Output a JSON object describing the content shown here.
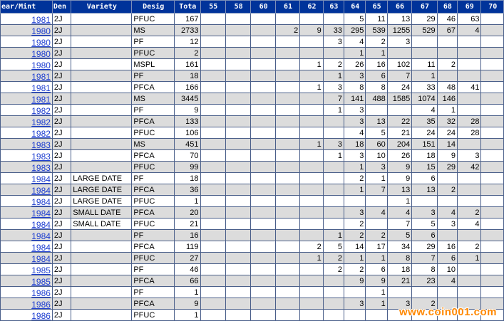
{
  "headers": [
    "ear/Mint",
    "Den",
    "Variety",
    "Desig",
    "Tota",
    "55",
    "58",
    "60",
    "61",
    "62",
    "63",
    "64",
    "65",
    "66",
    "67",
    "68",
    "69",
    "70"
  ],
  "rows": [
    {
      "year": "1981",
      "den": "2J",
      "variety": "",
      "desig": "PFUC",
      "total": "167",
      "grades": [
        "",
        "",
        "",
        "",
        "",
        "",
        "5",
        "11",
        "13",
        "29",
        "46",
        "63",
        ""
      ]
    },
    {
      "year": "1980",
      "den": "2J",
      "variety": "",
      "desig": "MS",
      "total": "2733",
      "grades": [
        "",
        "",
        "",
        "2",
        "9",
        "33",
        "295",
        "539",
        "1255",
        "529",
        "67",
        "4",
        ""
      ]
    },
    {
      "year": "1980",
      "den": "2J",
      "variety": "",
      "desig": "PF",
      "total": "12",
      "grades": [
        "",
        "",
        "",
        "",
        "",
        "3",
        "4",
        "2",
        "3",
        "",
        "",
        "",
        ""
      ]
    },
    {
      "year": "1980",
      "den": "2J",
      "variety": "",
      "desig": "PFUC",
      "total": "2",
      "grades": [
        "",
        "",
        "",
        "",
        "",
        "",
        "1",
        "1",
        "",
        "",
        "",
        "",
        ""
      ]
    },
    {
      "year": "1980",
      "den": "2J",
      "variety": "",
      "desig": "MSPL",
      "total": "161",
      "grades": [
        "",
        "",
        "",
        "",
        "1",
        "2",
        "26",
        "16",
        "102",
        "11",
        "2",
        "",
        ""
      ]
    },
    {
      "year": "1981",
      "den": "2J",
      "variety": "",
      "desig": "PF",
      "total": "18",
      "grades": [
        "",
        "",
        "",
        "",
        "",
        "1",
        "3",
        "6",
        "7",
        "1",
        "",
        "",
        ""
      ]
    },
    {
      "year": "1981",
      "den": "2J",
      "variety": "",
      "desig": "PFCA",
      "total": "166",
      "grades": [
        "",
        "",
        "",
        "",
        "1",
        "3",
        "8",
        "8",
        "24",
        "33",
        "48",
        "41",
        ""
      ]
    },
    {
      "year": "1981",
      "den": "2J",
      "variety": "",
      "desig": "MS",
      "total": "3445",
      "grades": [
        "",
        "",
        "",
        "",
        "",
        "7",
        "141",
        "488",
        "1585",
        "1074",
        "146",
        "",
        ""
      ]
    },
    {
      "year": "1982",
      "den": "2J",
      "variety": "",
      "desig": "PF",
      "total": "9",
      "grades": [
        "",
        "",
        "",
        "",
        "",
        "1",
        "3",
        "",
        "",
        "4",
        "1",
        "",
        ""
      ]
    },
    {
      "year": "1982",
      "den": "2J",
      "variety": "",
      "desig": "PFCA",
      "total": "133",
      "grades": [
        "",
        "",
        "",
        "",
        "",
        "",
        "3",
        "13",
        "22",
        "35",
        "32",
        "28",
        ""
      ]
    },
    {
      "year": "1982",
      "den": "2J",
      "variety": "",
      "desig": "PFUC",
      "total": "106",
      "grades": [
        "",
        "",
        "",
        "",
        "",
        "",
        "4",
        "5",
        "21",
        "24",
        "24",
        "28",
        ""
      ]
    },
    {
      "year": "1983",
      "den": "2J",
      "variety": "",
      "desig": "MS",
      "total": "451",
      "grades": [
        "",
        "",
        "",
        "",
        "1",
        "3",
        "18",
        "60",
        "204",
        "151",
        "14",
        "",
        ""
      ]
    },
    {
      "year": "1983",
      "den": "2J",
      "variety": "",
      "desig": "PFCA",
      "total": "70",
      "grades": [
        "",
        "",
        "",
        "",
        "",
        "1",
        "3",
        "10",
        "26",
        "18",
        "9",
        "3",
        ""
      ]
    },
    {
      "year": "1983",
      "den": "2J",
      "variety": "",
      "desig": "PFUC",
      "total": "99",
      "grades": [
        "",
        "",
        "",
        "",
        "",
        "",
        "1",
        "3",
        "9",
        "15",
        "29",
        "42",
        ""
      ]
    },
    {
      "year": "1984",
      "den": "2J",
      "variety": "LARGE DATE",
      "desig": "PF",
      "total": "18",
      "grades": [
        "",
        "",
        "",
        "",
        "",
        "",
        "2",
        "1",
        "9",
        "6",
        "",
        "",
        ""
      ]
    },
    {
      "year": "1984",
      "den": "2J",
      "variety": "LARGE DATE",
      "desig": "PFCA",
      "total": "36",
      "grades": [
        "",
        "",
        "",
        "",
        "",
        "",
        "1",
        "7",
        "13",
        "13",
        "2",
        "",
        ""
      ]
    },
    {
      "year": "1984",
      "den": "2J",
      "variety": "LARGE DATE",
      "desig": "PFUC",
      "total": "1",
      "grades": [
        "",
        "",
        "",
        "",
        "",
        "",
        "",
        "",
        "1",
        "",
        "",
        "",
        ""
      ]
    },
    {
      "year": "1984",
      "den": "2J",
      "variety": "SMALL DATE",
      "desig": "PFCA",
      "total": "20",
      "grades": [
        "",
        "",
        "",
        "",
        "",
        "",
        "3",
        "4",
        "4",
        "3",
        "4",
        "2",
        ""
      ]
    },
    {
      "year": "1984",
      "den": "2J",
      "variety": "SMALL DATE",
      "desig": "PFUC",
      "total": "21",
      "grades": [
        "",
        "",
        "",
        "",
        "",
        "",
        "2",
        "",
        "7",
        "5",
        "3",
        "4",
        ""
      ]
    },
    {
      "year": "1984",
      "den": "2J",
      "variety": "",
      "desig": "PF",
      "total": "16",
      "grades": [
        "",
        "",
        "",
        "",
        "",
        "1",
        "2",
        "2",
        "5",
        "6",
        "",
        "",
        ""
      ]
    },
    {
      "year": "1984",
      "den": "2J",
      "variety": "",
      "desig": "PFCA",
      "total": "119",
      "grades": [
        "",
        "",
        "",
        "",
        "2",
        "5",
        "14",
        "17",
        "34",
        "29",
        "16",
        "2",
        ""
      ]
    },
    {
      "year": "1984",
      "den": "2J",
      "variety": "",
      "desig": "PFUC",
      "total": "27",
      "grades": [
        "",
        "",
        "",
        "",
        "1",
        "2",
        "1",
        "1",
        "8",
        "7",
        "6",
        "1",
        ""
      ]
    },
    {
      "year": "1985",
      "den": "2J",
      "variety": "",
      "desig": "PF",
      "total": "46",
      "grades": [
        "",
        "",
        "",
        "",
        "",
        "2",
        "2",
        "6",
        "18",
        "8",
        "10",
        "",
        ""
      ]
    },
    {
      "year": "1985",
      "den": "2J",
      "variety": "",
      "desig": "PFCA",
      "total": "66",
      "grades": [
        "",
        "",
        "",
        "",
        "",
        "",
        "9",
        "9",
        "21",
        "23",
        "4",
        "",
        ""
      ]
    },
    {
      "year": "1986",
      "den": "2J",
      "variety": "",
      "desig": "PF",
      "total": "1",
      "grades": [
        "",
        "",
        "",
        "",
        "",
        "",
        "",
        "1",
        "",
        "",
        "",
        "",
        ""
      ]
    },
    {
      "year": "1986",
      "den": "2J",
      "variety": "",
      "desig": "PFCA",
      "total": "9",
      "grades": [
        "",
        "",
        "",
        "",
        "",
        "",
        "3",
        "1",
        "3",
        "2",
        "",
        "",
        ""
      ]
    },
    {
      "year": "1986",
      "den": "2J",
      "variety": "",
      "desig": "PFUC",
      "total": "1",
      "grades": [
        "",
        "",
        "",
        "",
        "",
        "",
        "",
        "",
        "",
        "",
        "",
        "",
        ""
      ]
    }
  ],
  "watermark": "www.coin001.com",
  "colors": {
    "header_bg": "#00339a",
    "link": "#1f3fd0",
    "row_alt": "#dcdcdc",
    "watermark": "#ff8800"
  }
}
